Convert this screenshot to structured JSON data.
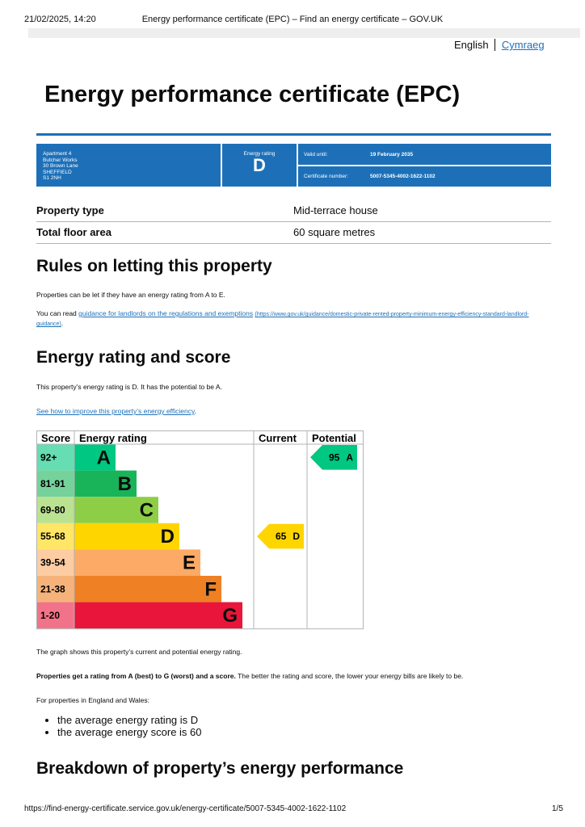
{
  "print_header": {
    "datetime": "21/02/2025, 14:20",
    "page_title": "Energy performance certificate (EPC) – Find an energy certificate – GOV.UK"
  },
  "language": {
    "current": "English",
    "other": "Cymraeg"
  },
  "title": "Energy performance certificate (EPC)",
  "summary": {
    "address": [
      "Apartment 4",
      "Butcher Works",
      "30 Brown Lane",
      "SHEFFIELD",
      "S1 2NH"
    ],
    "rating_label": "Energy rating",
    "rating": "D",
    "valid_label": "Valid until:",
    "valid_until": "19 February 2035",
    "cert_label": "Certificate number:",
    "cert_number": "5007-5345-4002-1622-1102"
  },
  "property": [
    {
      "label": "Property type",
      "value": "Mid-terrace house"
    },
    {
      "label": "Total floor area",
      "value": "60 square metres"
    }
  ],
  "letting": {
    "heading": "Rules on letting this property",
    "p1": "Properties can be let if they have an energy rating from A to E.",
    "p2_start": "You can read ",
    "p2_link": "guidance for landlords on the regulations and exemptions",
    "p2_url": "(https://www.gov.uk/guidance/domestic-private-rented-property-minimum-energy-efficiency-standard-landlord-guidance)",
    "p2_end": "."
  },
  "rating_section": {
    "heading": "Energy rating and score",
    "p1": "This property’s energy rating is D. It has the potential to be A.",
    "link": "See how to improve this property’s energy efficiency",
    "link_end": "."
  },
  "epc_table": {
    "headers": [
      "Score",
      "Energy rating",
      "Current",
      "Potential"
    ],
    "bands": [
      {
        "range": "92+",
        "letter": "A"
      },
      {
        "range": "81-91",
        "letter": "B"
      },
      {
        "range": "69-80",
        "letter": "C"
      },
      {
        "range": "55-68",
        "letter": "D"
      },
      {
        "range": "39-54",
        "letter": "E"
      },
      {
        "range": "21-38",
        "letter": "F"
      },
      {
        "range": "1-20",
        "letter": "G"
      }
    ],
    "current": {
      "score": 65,
      "rating": "D"
    },
    "potential": {
      "score": 95,
      "rating": "A"
    }
  },
  "after": {
    "p1": "The graph shows this property’s current and potential energy rating.",
    "p2_bold": "Properties get a rating from A (best) to G (worst) and a score.",
    "p2_rest": " The better the rating and score, the lower your energy bills are likely to be.",
    "p3": "For properties in England and Wales:",
    "bullets": [
      "the average energy rating is D",
      "the average energy score is 60"
    ]
  },
  "breakdown_heading": "Breakdown of property’s energy performance",
  "print_footer": {
    "url": "https://find-energy-certificate.service.gov.uk/energy-certificate/5007-5345-4002-1622-1102",
    "page": "1/5"
  }
}
